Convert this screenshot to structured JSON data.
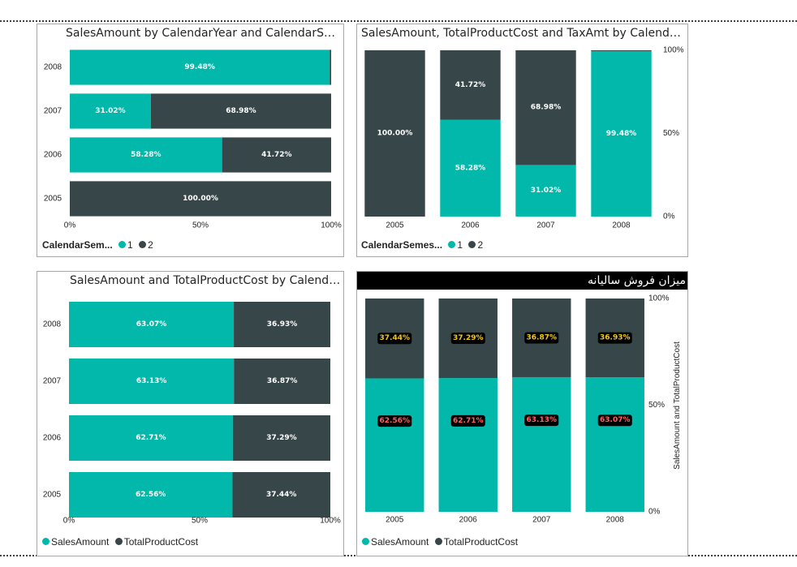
{
  "colors": {
    "teal": "#01b8aa",
    "dark": "#374649",
    "yellowLabel": "#f2c80f",
    "redLabel": "#fd625e"
  },
  "chart_data": [
    {
      "id": "c1",
      "type": "bar",
      "orientation": "horizontal",
      "stacked100": true,
      "title": "SalesAmount by CalendarYear and CalendarSemester",
      "categories": [
        "2008",
        "2007",
        "2006",
        "2005"
      ],
      "xticks": [
        "0%",
        "50%",
        "100%"
      ],
      "legend_title": "CalendarSem...",
      "legend_position": "bottom-left",
      "series": [
        {
          "name": "1",
          "values": [
            99.48,
            31.02,
            58.28,
            0
          ],
          "labels": [
            "99.48%",
            "31.02%",
            "58.28%",
            ""
          ]
        },
        {
          "name": "2",
          "values": [
            0.52,
            68.98,
            41.72,
            100
          ],
          "labels": [
            "",
            "68.98%",
            "41.72%",
            "100.00%"
          ]
        }
      ]
    },
    {
      "id": "c2",
      "type": "bar",
      "orientation": "vertical",
      "stacked100": true,
      "title": "SalesAmount, TotalProductCost and TaxAmt by CalendarYear...",
      "categories": [
        "2005",
        "2006",
        "2007",
        "2008"
      ],
      "yticks": [
        "100%",
        "50%",
        "0%"
      ],
      "legend_title": "CalendarSemes...",
      "legend_position": "bottom-left",
      "series": [
        {
          "name": "1",
          "values": [
            0,
            58.28,
            31.02,
            99.48
          ],
          "labels": [
            "",
            "58.28%",
            "31.02%",
            "99.48%"
          ]
        },
        {
          "name": "2",
          "values": [
            100,
            41.72,
            68.98,
            0.52
          ],
          "labels": [
            "100.00%",
            "41.72%",
            "68.98%",
            ""
          ]
        }
      ]
    },
    {
      "id": "c3",
      "type": "bar",
      "orientation": "horizontal",
      "stacked100": true,
      "title": "SalesAmount and TotalProductCost by CalendarYear",
      "categories": [
        "2008",
        "2007",
        "2006",
        "2005"
      ],
      "xticks": [
        "0%",
        "50%",
        "100%"
      ],
      "legend_position": "bottom-left",
      "series": [
        {
          "name": "SalesAmount",
          "values": [
            63.07,
            63.13,
            62.71,
            62.56
          ],
          "labels": [
            "63.07%",
            "63.13%",
            "62.71%",
            "62.56%"
          ]
        },
        {
          "name": "TotalProductCost",
          "values": [
            36.93,
            36.87,
            37.29,
            37.44
          ],
          "labels": [
            "36.93%",
            "36.87%",
            "37.29%",
            "37.44%"
          ]
        }
      ]
    },
    {
      "id": "c4",
      "type": "bar",
      "orientation": "vertical",
      "stacked100": true,
      "title": "میزان فروش سالیانه",
      "categories": [
        "2005",
        "2006",
        "2007",
        "2008"
      ],
      "yticks": [
        "100%",
        "50%",
        "0%"
      ],
      "ylabel": "SalesAmount and TotalProductCost",
      "legend_position": "bottom-left",
      "series": [
        {
          "name": "SalesAmount",
          "values": [
            62.56,
            62.71,
            63.13,
            63.07
          ],
          "labels": [
            "62.56%",
            "62.71%",
            "63.13%",
            "63.07%"
          ]
        },
        {
          "name": "TotalProductCost",
          "values": [
            37.44,
            37.29,
            36.87,
            36.93
          ],
          "labels": [
            "37.44%",
            "37.29%",
            "36.87%",
            "36.93%"
          ]
        }
      ]
    }
  ]
}
